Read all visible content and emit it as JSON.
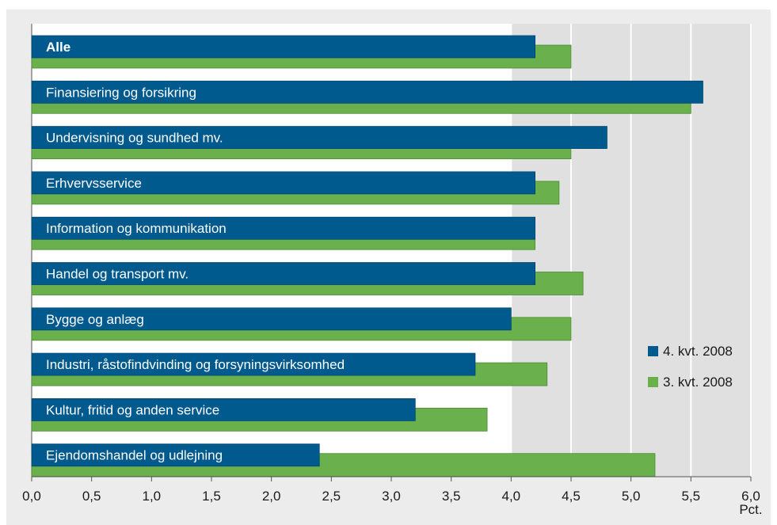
{
  "chart_data": {
    "type": "bar",
    "orientation": "horizontal",
    "categories": [
      "Alle",
      "Finansiering og forsikring",
      "Undervisning og sundhed mv.",
      "Erhvervsservice",
      "Information og kommunikation",
      "Handel og transport mv.",
      "Bygge og anlæg",
      "Industri, råstofindvinding og forsyningsvirksomhed",
      "Kultur, fritid og anden service",
      "Ejendomshandel og udlejning"
    ],
    "series": [
      {
        "name": "4. kvt. 2008",
        "color": "#005a8e",
        "values": [
          4.2,
          5.6,
          4.8,
          4.2,
          4.2,
          4.2,
          4.0,
          3.7,
          3.2,
          2.4
        ]
      },
      {
        "name": "3. kvt. 2008",
        "color": "#6ab04c",
        "values": [
          4.5,
          5.5,
          4.5,
          4.4,
          4.2,
          4.6,
          4.5,
          4.3,
          3.8,
          5.2
        ]
      }
    ],
    "xlim": [
      0,
      6
    ],
    "xticks": [
      "0,0",
      "0,5",
      "1,0",
      "1,5",
      "2,0",
      "2,5",
      "3,0",
      "3,5",
      "4,0",
      "4,5",
      "5,0",
      "5,5",
      "6,0"
    ],
    "xunit": "Pct.",
    "legend_position": "right"
  }
}
